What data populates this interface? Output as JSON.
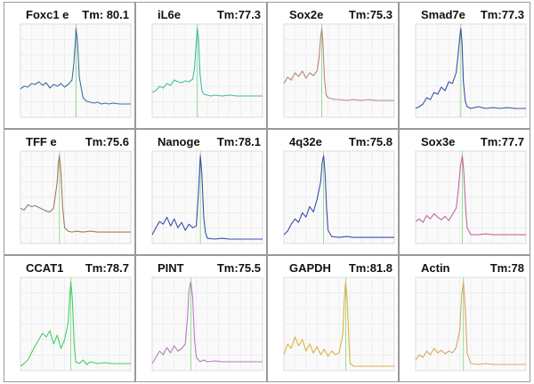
{
  "chart_data": [
    {
      "type": "line",
      "title": "Foxc1 e",
      "tm_label": "Tm: 80.1",
      "tm": 80.1,
      "color": "#3b6fa0",
      "x": [
        65,
        66,
        67,
        68,
        69,
        70,
        71,
        72,
        73,
        74,
        75,
        76,
        77,
        78,
        79,
        79.5,
        80,
        80.1,
        80.5,
        81,
        82,
        83,
        84,
        85,
        86,
        87,
        88,
        89,
        90,
        92,
        95
      ],
      "y": [
        0.32,
        0.35,
        0.34,
        0.38,
        0.37,
        0.4,
        0.36,
        0.39,
        0.33,
        0.37,
        0.35,
        0.38,
        0.34,
        0.37,
        0.42,
        0.6,
        0.9,
        1.0,
        0.85,
        0.45,
        0.22,
        0.18,
        0.17,
        0.16,
        0.17,
        0.15,
        0.16,
        0.15,
        0.16,
        0.15,
        0.15
      ]
    },
    {
      "type": "line",
      "title": "iL6e",
      "tm_label": "Tm:77.3",
      "tm": 77.3,
      "color": "#3fbf9f",
      "x": [
        65,
        66,
        67,
        68,
        69,
        70,
        71,
        72,
        73,
        74,
        75,
        76,
        76.5,
        77,
        77.3,
        77.6,
        78,
        78.5,
        79,
        80,
        81,
        82,
        84,
        86,
        88,
        90,
        92,
        95
      ],
      "y": [
        0.28,
        0.3,
        0.35,
        0.33,
        0.38,
        0.36,
        0.42,
        0.4,
        0.39,
        0.41,
        0.4,
        0.43,
        0.55,
        0.85,
        1.0,
        0.88,
        0.5,
        0.3,
        0.26,
        0.25,
        0.24,
        0.25,
        0.24,
        0.25,
        0.24,
        0.24,
        0.24,
        0.24
      ]
    },
    {
      "type": "line",
      "title": "Sox2e",
      "tm_label": "Tm:75.3",
      "tm": 75.3,
      "color": "#b08a78",
      "x": [
        65,
        66,
        67,
        68,
        69,
        70,
        71,
        72,
        73,
        74,
        74.5,
        75,
        75.3,
        75.6,
        76,
        76.5,
        77,
        78,
        79,
        80,
        82,
        84,
        86,
        88,
        90,
        92,
        95
      ],
      "y": [
        0.38,
        0.45,
        0.42,
        0.5,
        0.46,
        0.52,
        0.44,
        0.5,
        0.47,
        0.52,
        0.65,
        0.9,
        1.0,
        0.85,
        0.45,
        0.25,
        0.22,
        0.21,
        0.2,
        0.2,
        0.19,
        0.2,
        0.19,
        0.2,
        0.19,
        0.19,
        0.19
      ]
    },
    {
      "type": "line",
      "title": "Smad7e",
      "tm_label": "Tm:77.3",
      "tm": 77.3,
      "color": "#3a4fa8",
      "x": [
        65,
        66,
        67,
        68,
        69,
        70,
        71,
        72,
        73,
        74,
        75,
        76,
        76.5,
        77,
        77.3,
        77.6,
        78,
        78.5,
        79,
        80,
        82,
        84,
        86,
        88,
        90,
        92,
        95
      ],
      "y": [
        0.1,
        0.12,
        0.15,
        0.22,
        0.2,
        0.28,
        0.26,
        0.34,
        0.3,
        0.4,
        0.38,
        0.5,
        0.68,
        0.9,
        1.0,
        0.85,
        0.4,
        0.18,
        0.12,
        0.1,
        0.12,
        0.1,
        0.11,
        0.1,
        0.11,
        0.1,
        0.1
      ]
    },
    {
      "type": "line",
      "title": "TFF e",
      "tm_label": "Tm:75.6",
      "tm": 75.6,
      "color": "#a07a5a",
      "x": [
        65,
        66,
        67,
        68,
        69,
        70,
        71,
        72,
        73,
        74,
        75,
        75.3,
        75.6,
        76,
        76.5,
        77,
        78,
        79,
        80,
        82,
        84,
        86,
        88,
        90,
        92,
        95
      ],
      "y": [
        0.4,
        0.38,
        0.44,
        0.42,
        0.43,
        0.41,
        0.39,
        0.37,
        0.36,
        0.4,
        0.7,
        0.92,
        1.0,
        0.8,
        0.4,
        0.18,
        0.14,
        0.13,
        0.14,
        0.13,
        0.14,
        0.13,
        0.13,
        0.13,
        0.13,
        0.13
      ]
    },
    {
      "type": "line",
      "title": "Nanoge",
      "tm_label": "Tm:78.1",
      "tm": 78.1,
      "color": "#3a4fa8",
      "x": [
        65,
        66,
        67,
        68,
        69,
        70,
        71,
        72,
        73,
        74,
        75,
        76,
        77,
        77.6,
        78.1,
        78.5,
        79,
        79.5,
        80,
        82,
        84,
        86,
        88,
        90,
        92,
        95
      ],
      "y": [
        0.1,
        0.18,
        0.25,
        0.22,
        0.3,
        0.2,
        0.28,
        0.18,
        0.24,
        0.15,
        0.22,
        0.18,
        0.2,
        0.6,
        1.0,
        0.8,
        0.3,
        0.12,
        0.06,
        0.05,
        0.06,
        0.05,
        0.05,
        0.05,
        0.05,
        0.05
      ]
    },
    {
      "type": "line",
      "title": "4q32e",
      "tm_label": "Tm:75.8",
      "tm": 75.8,
      "color": "#3a4fa8",
      "x": [
        65,
        66,
        67,
        68,
        69,
        70,
        71,
        72,
        73,
        74,
        75,
        75.4,
        75.8,
        76.2,
        76.6,
        77,
        78,
        80,
        82,
        84,
        86,
        88,
        90,
        92,
        95
      ],
      "y": [
        0.1,
        0.14,
        0.22,
        0.28,
        0.24,
        0.35,
        0.3,
        0.42,
        0.36,
        0.5,
        0.7,
        0.92,
        1.0,
        0.8,
        0.4,
        0.15,
        0.08,
        0.07,
        0.08,
        0.07,
        0.07,
        0.07,
        0.07,
        0.07,
        0.07
      ]
    },
    {
      "type": "line",
      "title": "Sox3e",
      "tm_label": "Tm:77.7",
      "tm": 77.7,
      "color": "#c06aa0",
      "x": [
        65,
        66,
        67,
        68,
        69,
        70,
        71,
        72,
        73,
        74,
        75,
        76,
        76.6,
        77.2,
        77.7,
        78.1,
        78.6,
        79,
        80,
        82,
        84,
        86,
        88,
        90,
        92,
        95
      ],
      "y": [
        0.25,
        0.28,
        0.24,
        0.32,
        0.28,
        0.34,
        0.3,
        0.27,
        0.31,
        0.26,
        0.33,
        0.4,
        0.6,
        0.88,
        1.0,
        0.82,
        0.4,
        0.18,
        0.1,
        0.1,
        0.11,
        0.1,
        0.1,
        0.1,
        0.1,
        0.1
      ]
    },
    {
      "type": "line",
      "title": "CCAT1",
      "tm_label": "Tm:78.7",
      "tm": 78.7,
      "color": "#3fcf6a",
      "x": [
        65,
        66,
        67,
        68,
        69,
        70,
        71,
        72,
        73,
        74,
        75,
        76,
        77,
        78,
        78.4,
        78.7,
        79.1,
        79.6,
        80,
        81,
        82,
        83,
        84,
        86,
        88,
        90,
        92,
        95
      ],
      "y": [
        0.05,
        0.08,
        0.12,
        0.2,
        0.28,
        0.35,
        0.42,
        0.38,
        0.45,
        0.3,
        0.4,
        0.25,
        0.35,
        0.55,
        0.85,
        1.0,
        0.8,
        0.3,
        0.1,
        0.08,
        0.12,
        0.07,
        0.1,
        0.08,
        0.09,
        0.08,
        0.08,
        0.08
      ]
    },
    {
      "type": "line",
      "title": "PINT",
      "tm_label": "Tm:75.5",
      "tm": 75.5,
      "color": "#b080b8",
      "x": [
        65,
        66,
        67,
        68,
        69,
        70,
        71,
        72,
        73,
        74,
        74.6,
        75,
        75.5,
        76,
        76.5,
        77,
        78,
        79,
        80,
        82,
        84,
        86,
        88,
        90,
        92,
        95
      ],
      "y": [
        0.08,
        0.15,
        0.22,
        0.18,
        0.26,
        0.2,
        0.28,
        0.22,
        0.25,
        0.3,
        0.6,
        0.9,
        1.0,
        0.82,
        0.35,
        0.15,
        0.1,
        0.12,
        0.1,
        0.11,
        0.1,
        0.1,
        0.1,
        0.1,
        0.1,
        0.1
      ]
    },
    {
      "type": "line",
      "title": "GAPDH",
      "tm_label": "Tm:81.8",
      "tm": 81.8,
      "color": "#e0b040",
      "x": [
        65,
        66,
        67,
        68,
        69,
        70,
        71,
        72,
        73,
        74,
        75,
        76,
        77,
        78,
        79,
        80,
        81,
        81.4,
        81.8,
        82.2,
        82.7,
        83,
        84,
        86,
        88,
        90,
        92,
        95
      ],
      "y": [
        0.18,
        0.3,
        0.25,
        0.38,
        0.28,
        0.35,
        0.22,
        0.3,
        0.2,
        0.27,
        0.18,
        0.24,
        0.16,
        0.22,
        0.18,
        0.2,
        0.4,
        0.8,
        1.0,
        0.8,
        0.3,
        0.08,
        0.05,
        0.05,
        0.05,
        0.05,
        0.05,
        0.05
      ]
    },
    {
      "type": "line",
      "title": "Actin",
      "tm_label": "Tm:78",
      "tm": 78,
      "color": "#d8a860",
      "x": [
        65,
        66,
        67,
        68,
        69,
        70,
        71,
        72,
        73,
        74,
        75,
        76,
        77,
        77.5,
        78,
        78.5,
        79,
        80,
        82,
        84,
        86,
        88,
        90,
        92,
        95
      ],
      "y": [
        0.12,
        0.18,
        0.15,
        0.22,
        0.18,
        0.25,
        0.2,
        0.23,
        0.19,
        0.22,
        0.2,
        0.26,
        0.45,
        0.85,
        1.0,
        0.7,
        0.2,
        0.08,
        0.07,
        0.08,
        0.07,
        0.07,
        0.07,
        0.07,
        0.07
      ]
    }
  ]
}
